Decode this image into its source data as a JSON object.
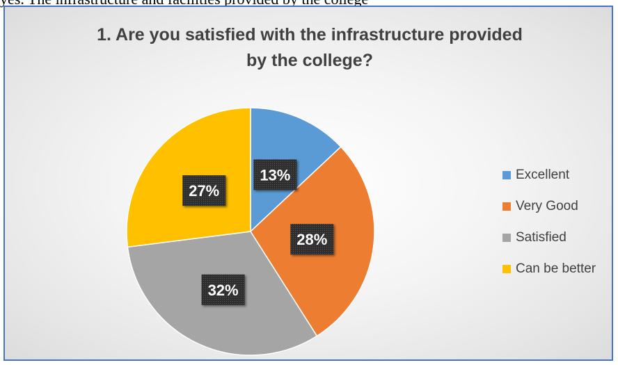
{
  "page": {
    "header_text": "yes. The infrastructure and facilities provided by the college"
  },
  "chart_data": {
    "type": "pie",
    "title_lines": [
      "1. Are you satisfied with the infrastructure provided",
      "by the college?"
    ],
    "categories": [
      "Excellent",
      "Very Good",
      "Satisfied",
      "Can be better"
    ],
    "values": [
      13,
      28,
      32,
      27
    ],
    "data_labels": [
      "13%",
      "28%",
      "32%",
      "27%"
    ],
    "colors": [
      "#5b9bd5",
      "#ed7d31",
      "#a5a5a5",
      "#ffc000"
    ],
    "legend_position": "right",
    "label_style": "white bold text on dark patterned box"
  }
}
